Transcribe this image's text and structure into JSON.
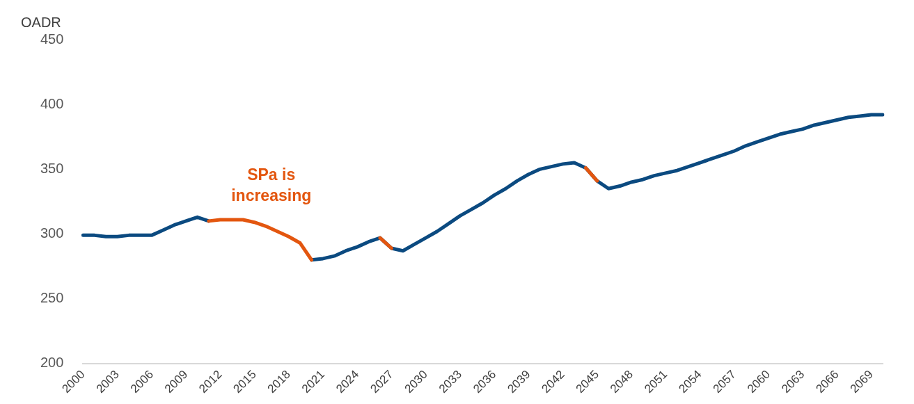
{
  "chart_data": {
    "type": "line",
    "ylabel": "OADR",
    "categories": [
      "2000",
      null,
      null,
      "2003",
      null,
      null,
      "2006",
      null,
      null,
      "2009",
      null,
      null,
      "2012",
      null,
      null,
      "2015",
      null,
      null,
      "2018",
      null,
      null,
      "2021",
      null,
      null,
      "2024",
      null,
      null,
      "2027",
      null,
      null,
      "2030",
      null,
      null,
      "2033",
      null,
      null,
      "2036",
      null,
      null,
      "2039",
      null,
      null,
      "2042",
      null,
      null,
      "2045",
      null,
      null,
      "2048",
      null,
      null,
      "2051",
      null,
      null,
      "2054",
      null,
      null,
      "2057",
      null,
      null,
      "2060",
      null,
      null,
      "2063",
      null,
      null,
      "2066",
      null,
      null,
      "2069",
      null
    ],
    "series": [
      {
        "color": "#0b4a80",
        "values": [
          299,
          299,
          298,
          298,
          299,
          299,
          299,
          303,
          307,
          310,
          313,
          310,
          null,
          null,
          null,
          null,
          null,
          null,
          null,
          null,
          280,
          281,
          283,
          287,
          290,
          294,
          297,
          289,
          287,
          292,
          297,
          302,
          308,
          314,
          319,
          324,
          330,
          335,
          341,
          346,
          350,
          352,
          354,
          355,
          351,
          341,
          335,
          337,
          340,
          342,
          345,
          347,
          349,
          352,
          355,
          358,
          361,
          364,
          368,
          371,
          374,
          377,
          379,
          381,
          384,
          386,
          388,
          390,
          391,
          392,
          392
        ]
      },
      {
        "color": "#e3560f",
        "values": [
          null,
          null,
          null,
          null,
          null,
          null,
          null,
          null,
          null,
          null,
          null,
          310,
          311,
          311,
          311,
          309,
          306,
          302,
          298,
          293,
          280,
          null,
          null,
          null,
          null,
          null,
          297,
          289,
          null,
          null,
          null,
          null,
          null,
          null,
          null,
          null,
          null,
          null,
          null,
          null,
          null,
          null,
          null,
          null,
          351,
          341,
          null,
          null,
          null,
          null,
          null,
          null,
          null,
          null,
          null,
          null,
          null,
          null,
          null,
          null,
          null,
          null,
          null,
          null,
          null,
          null,
          null,
          null,
          null,
          null,
          null
        ]
      }
    ],
    "ylim": [
      200,
      450
    ],
    "yticks": [
      200,
      250,
      300,
      350,
      400,
      450
    ],
    "grid": false,
    "legend": false,
    "line_style": "solid",
    "marker": "none",
    "annotations": [
      "SPa is increasing"
    ]
  }
}
